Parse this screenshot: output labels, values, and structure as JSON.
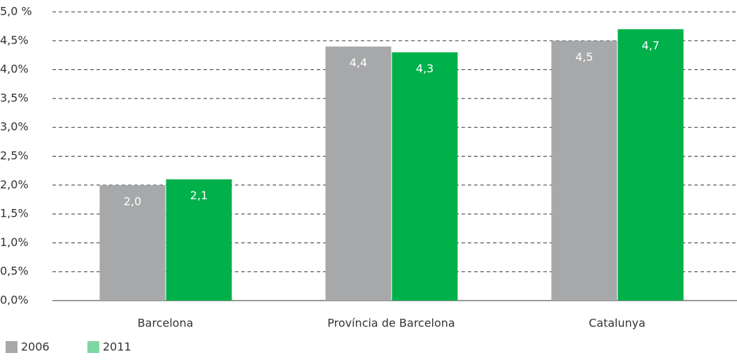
{
  "chart_data": {
    "type": "bar",
    "categories": [
      "Barcelona",
      "Província de Barcelona",
      "Catalunya"
    ],
    "series": [
      {
        "name": "2006",
        "color": "#a7a8aa",
        "values": [
          2.0,
          4.4,
          4.5
        ],
        "value_labels": [
          "2,0",
          "4,4",
          "4,5"
        ]
      },
      {
        "name": "2011",
        "color": "#00b04a",
        "values": [
          2.1,
          4.3,
          4.7
        ],
        "value_labels": [
          "2,1",
          "4,3",
          "4,7"
        ]
      }
    ],
    "ylim": [
      0,
      5
    ],
    "yticks": [
      {
        "value": 0,
        "label": "0,0%"
      },
      {
        "value": 0.5,
        "label": "0,5%"
      },
      {
        "value": 1,
        "label": "1,0%"
      },
      {
        "value": 1.5,
        "label": "1,5%"
      },
      {
        "value": 2,
        "label": "2,0%"
      },
      {
        "value": 2.5,
        "label": "2,5%"
      },
      {
        "value": 3,
        "label": "3,0%"
      },
      {
        "value": 3.5,
        "label": "3,5%"
      },
      {
        "value": 4,
        "label": "4,0%"
      },
      {
        "value": 4.5,
        "label": "4,5%"
      },
      {
        "value": 5,
        "label": "5,0 %"
      }
    ],
    "grid": true,
    "legend": "bottom-left"
  }
}
